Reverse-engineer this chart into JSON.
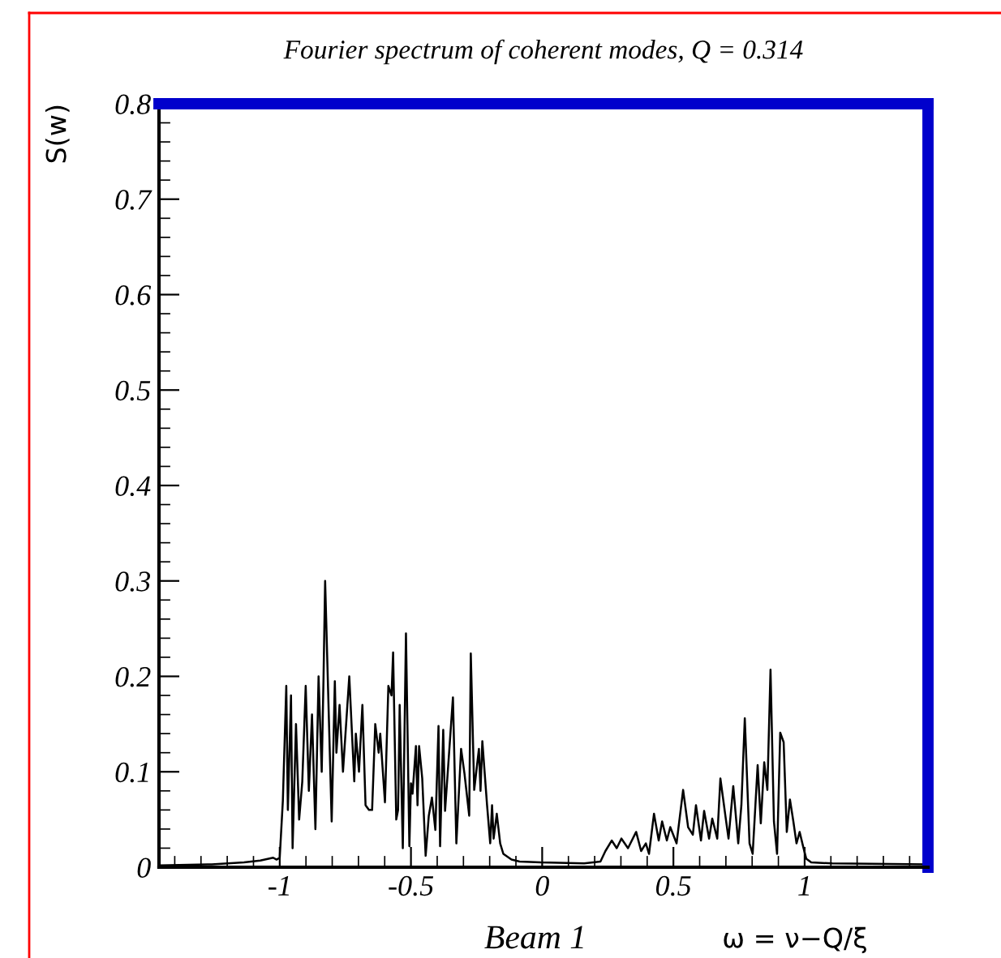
{
  "chart_data": {
    "type": "line",
    "title": "Fourier spectrum of coherent modes, Q = 0.314",
    "xlabel": "ω = ν−Q/ξ",
    "ylabel": "S(w)",
    "annotations": [
      "Beam 1"
    ],
    "xlim": [
      -1.46,
      1.47
    ],
    "ylim": [
      0,
      0.8
    ],
    "xticks": [
      -1,
      -0.5,
      0,
      0.5,
      1
    ],
    "yticks": [
      0,
      0.1,
      0.2,
      0.3,
      0.4,
      0.5,
      0.6,
      0.7,
      0.8
    ],
    "grid": false,
    "legend": false,
    "series": [
      {
        "color": "#000000",
        "x": [
          -1.457,
          -1.259,
          -1.136,
          -1.074,
          -1.025,
          -1.012,
          -1.0,
          -0.988,
          -0.975,
          -0.969,
          -0.957,
          -0.951,
          -0.938,
          -0.926,
          -0.914,
          -0.901,
          -0.889,
          -0.877,
          -0.864,
          -0.852,
          -0.84,
          -0.833,
          -0.827,
          -0.802,
          -0.79,
          -0.784,
          -0.772,
          -0.759,
          -0.735,
          -0.716,
          -0.71,
          -0.698,
          -0.685,
          -0.673,
          -0.66,
          -0.648,
          -0.636,
          -0.623,
          -0.617,
          -0.599,
          -0.586,
          -0.574,
          -0.568,
          -0.556,
          -0.549,
          -0.543,
          -0.531,
          -0.519,
          -0.506,
          -0.5,
          -0.494,
          -0.481,
          -0.475,
          -0.469,
          -0.457,
          -0.444,
          -0.432,
          -0.42,
          -0.407,
          -0.395,
          -0.389,
          -0.377,
          -0.37,
          -0.34,
          -0.327,
          -0.309,
          -0.296,
          -0.278,
          -0.272,
          -0.259,
          -0.241,
          -0.235,
          -0.228,
          -0.21,
          -0.198,
          -0.191,
          -0.185,
          -0.173,
          -0.16,
          -0.148,
          -0.117,
          -0.086,
          -0.006,
          0.16,
          0.222,
          0.241,
          0.265,
          0.284,
          0.302,
          0.327,
          0.358,
          0.377,
          0.395,
          0.407,
          0.426,
          0.444,
          0.457,
          0.475,
          0.488,
          0.512,
          0.537,
          0.556,
          0.574,
          0.586,
          0.605,
          0.617,
          0.636,
          0.648,
          0.667,
          0.679,
          0.698,
          0.71,
          0.728,
          0.747,
          0.759,
          0.772,
          0.79,
          0.802,
          0.821,
          0.833,
          0.846,
          0.858,
          0.87,
          0.883,
          0.895,
          0.907,
          0.92,
          0.932,
          0.944,
          0.957,
          0.969,
          0.981,
          0.994,
          1.006,
          1.025,
          1.105,
          1.469
        ],
        "values": [
          0.002,
          0.003,
          0.005,
          0.007,
          0.01,
          0.008,
          0.01,
          0.07,
          0.19,
          0.06,
          0.18,
          0.02,
          0.15,
          0.05,
          0.09,
          0.19,
          0.08,
          0.16,
          0.04,
          0.2,
          0.1,
          0.2,
          0.3,
          0.048,
          0.195,
          0.12,
          0.17,
          0.1,
          0.2,
          0.09,
          0.14,
          0.1,
          0.17,
          0.065,
          0.06,
          0.06,
          0.15,
          0.12,
          0.14,
          0.068,
          0.19,
          0.18,
          0.225,
          0.05,
          0.06,
          0.17,
          0.02,
          0.245,
          0.022,
          0.088,
          0.077,
          0.127,
          0.065,
          0.127,
          0.093,
          0.012,
          0.054,
          0.073,
          0.039,
          0.148,
          0.022,
          0.144,
          0.059,
          0.178,
          0.025,
          0.124,
          0.098,
          0.054,
          0.224,
          0.081,
          0.124,
          0.08,
          0.132,
          0.065,
          0.025,
          0.065,
          0.03,
          0.056,
          0.025,
          0.014,
          0.008,
          0.006,
          0.005,
          0.004,
          0.006,
          0.017,
          0.028,
          0.02,
          0.03,
          0.02,
          0.037,
          0.017,
          0.025,
          0.014,
          0.056,
          0.028,
          0.048,
          0.028,
          0.042,
          0.025,
          0.081,
          0.042,
          0.034,
          0.065,
          0.028,
          0.059,
          0.03,
          0.051,
          0.03,
          0.093,
          0.054,
          0.03,
          0.085,
          0.025,
          0.065,
          0.156,
          0.025,
          0.014,
          0.107,
          0.046,
          0.11,
          0.081,
          0.207,
          0.048,
          0.014,
          0.141,
          0.131,
          0.037,
          0.071,
          0.048,
          0.025,
          0.037,
          0.022,
          0.009,
          0.005,
          0.004,
          0.003
        ]
      }
    ]
  }
}
